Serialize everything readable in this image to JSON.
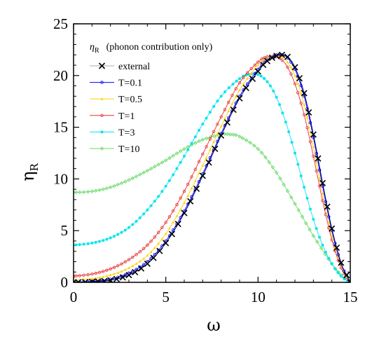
{
  "chart_data": {
    "type": "line",
    "title": "",
    "xlabel": "ω",
    "ylabel": "η",
    "ylabel_sub": "R",
    "xlim": [
      0,
      15
    ],
    "ylim": [
      0,
      25
    ],
    "xticks": [
      0,
      5,
      10,
      15
    ],
    "yticks": [
      0,
      5,
      10,
      15,
      20,
      25
    ],
    "grid": false,
    "legend_position": "top-left",
    "legend_header": {
      "symbol": "η",
      "symbol_sub": "R",
      "text": "(phonon contribution only)"
    },
    "series": [
      {
        "name": "external",
        "color": "#000080",
        "marker": "x",
        "x": [
          0,
          1,
          2,
          3,
          4,
          5,
          6,
          7,
          8,
          9,
          10,
          10.5,
          11,
          11.3,
          11.6,
          12,
          12.5,
          13,
          13.5,
          14,
          14.5,
          14.8,
          15
        ],
        "y": [
          0,
          0.05,
          0.2,
          0.7,
          1.8,
          3.8,
          6.7,
          10.3,
          14.2,
          17.8,
          20.4,
          21.4,
          21.9,
          22.0,
          21.8,
          20.8,
          18.3,
          14.3,
          9.6,
          5.2,
          1.9,
          0.7,
          0
        ]
      },
      {
        "name": "T=0.1",
        "color": "#0000ff",
        "marker": "circle-open",
        "x": [
          0,
          1,
          2,
          3,
          4,
          5,
          6,
          7,
          8,
          9,
          10,
          10.5,
          11,
          11.3,
          11.6,
          12,
          12.5,
          13,
          13.5,
          14,
          14.5,
          14.8,
          15
        ],
        "y": [
          0.02,
          0.1,
          0.3,
          0.9,
          2.0,
          4.0,
          6.9,
          10.5,
          14.4,
          18.0,
          20.6,
          21.5,
          22.0,
          22.0,
          21.7,
          20.6,
          18.0,
          14.0,
          9.3,
          5.0,
          1.8,
          0.7,
          0
        ]
      },
      {
        "name": "T=0.5",
        "color": "#ffd400",
        "marker": "triangle",
        "x": [
          0,
          1,
          2,
          3,
          4,
          5,
          6,
          7,
          8,
          9,
          10,
          10.5,
          11,
          11.3,
          11.6,
          12,
          12.5,
          13,
          13.5,
          14,
          14.5,
          14.8,
          15
        ],
        "y": [
          0.2,
          0.35,
          0.7,
          1.4,
          2.6,
          4.7,
          7.7,
          11.3,
          15.1,
          18.6,
          21.0,
          21.7,
          22.0,
          21.8,
          21.3,
          20.0,
          17.2,
          13.1,
          8.6,
          4.5,
          1.6,
          0.6,
          0
        ]
      },
      {
        "name": "T=1",
        "color": "#e83030",
        "marker": "circle-open",
        "x": [
          0,
          1,
          2,
          3,
          4,
          5,
          6,
          7,
          8,
          9,
          10,
          10.5,
          11,
          11.3,
          11.6,
          12,
          12.5,
          13,
          13.5,
          14,
          14.5,
          14.8,
          15
        ],
        "y": [
          0.6,
          0.8,
          1.3,
          2.2,
          3.6,
          5.8,
          8.8,
          12.4,
          16.0,
          19.3,
          21.3,
          21.8,
          21.8,
          21.5,
          20.8,
          19.2,
          16.2,
          12.2,
          7.9,
          4.1,
          1.4,
          0.5,
          0
        ]
      },
      {
        "name": "T=3",
        "color": "#00e5ee",
        "marker": "dot",
        "x": [
          0,
          1,
          2,
          3,
          4,
          5,
          6,
          7,
          8,
          9,
          9.5,
          10,
          10.5,
          11,
          11.5,
          12,
          12.5,
          13,
          13.5,
          14,
          14.5,
          15
        ],
        "y": [
          3.6,
          3.8,
          4.3,
          5.3,
          7.0,
          9.3,
          12.2,
          15.3,
          18.0,
          19.7,
          20.1,
          20.1,
          19.4,
          17.9,
          15.5,
          12.5,
          9.2,
          6.1,
          3.6,
          1.8,
          0.6,
          0
        ]
      },
      {
        "name": "T=10",
        "color": "#66d966",
        "marker": "diamond-open",
        "x": [
          0,
          1,
          2,
          3,
          4,
          5,
          6,
          7,
          8,
          8.5,
          9,
          10,
          11,
          12,
          13,
          14,
          14.5,
          15
        ],
        "y": [
          8.7,
          8.8,
          9.2,
          9.9,
          10.8,
          11.8,
          12.9,
          13.8,
          14.3,
          14.3,
          14.1,
          12.9,
          10.6,
          7.6,
          4.5,
          1.8,
          0.7,
          0
        ]
      }
    ]
  }
}
